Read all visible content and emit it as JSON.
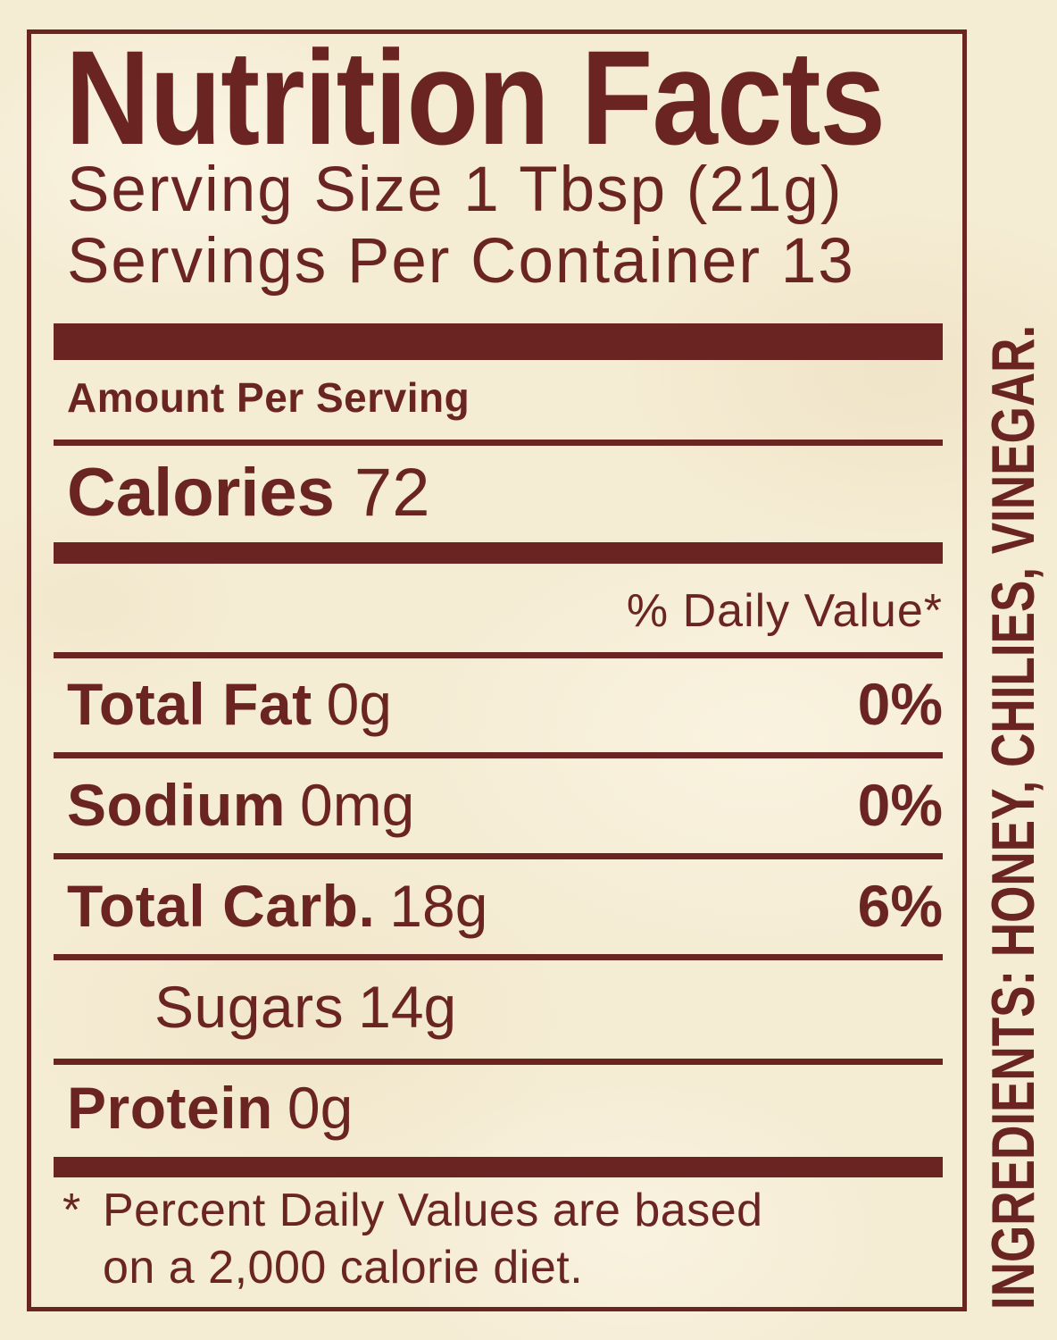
{
  "colors": {
    "maroon": "#6a2422",
    "background_cream": "#f5ecd4"
  },
  "label": {
    "title": "Nutrition Facts",
    "serving_size": "Serving Size 1 Tbsp (21g)",
    "servings_per_container": "Servings Per Container 13",
    "amount_per_serving": "Amount Per Serving",
    "calories_label": "Calories",
    "calories_value": "72",
    "daily_value_header": "% Daily Value*",
    "rows": [
      {
        "name": "Total Fat",
        "amount": "0g",
        "dv": "0%"
      },
      {
        "name": "Sodium",
        "amount": "0mg",
        "dv": "0%"
      },
      {
        "name": "Total Carb.",
        "amount": "18g",
        "dv": "6%"
      },
      {
        "name": "Sugars",
        "amount": "14g",
        "dv": ""
      },
      {
        "name": "Protein",
        "amount": "0g",
        "dv": ""
      }
    ],
    "footnote_marker": "*",
    "footnote_line1": "Percent Daily Values are based",
    "footnote_line2": "on a 2,000 calorie diet.",
    "ingredients": "INGREDIENTS: HONEY, CHILIES, VINEGAR."
  }
}
